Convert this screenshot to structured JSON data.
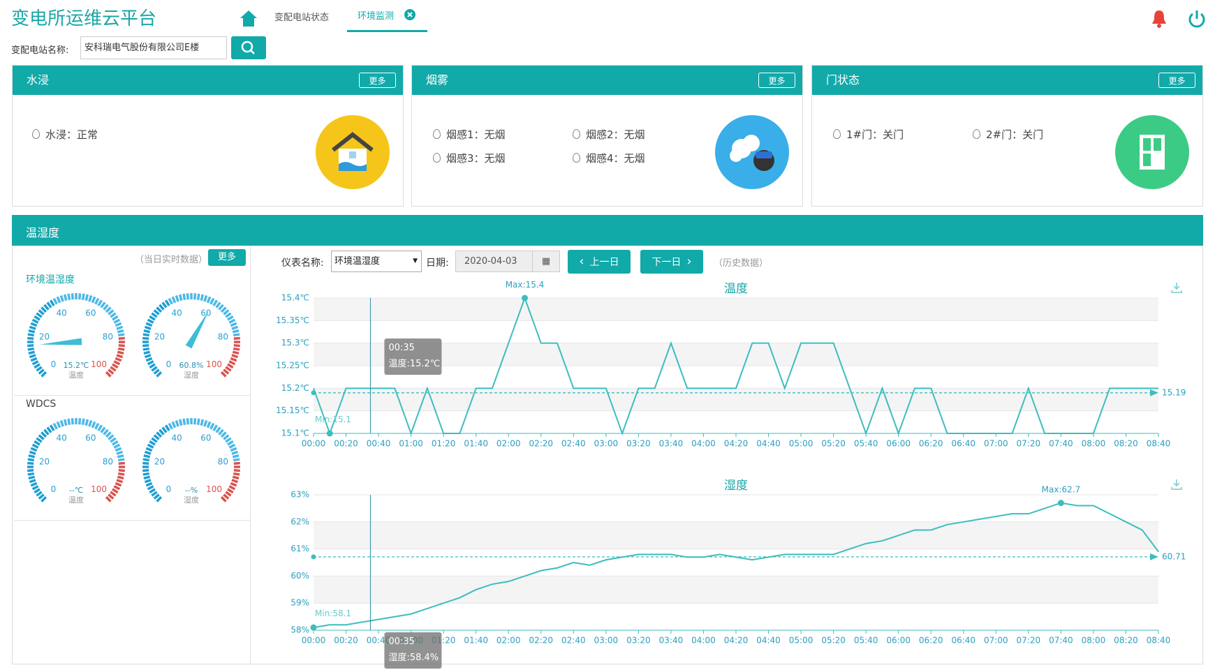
{
  "header": {
    "title": "变电所运维云平台",
    "tabs": [
      "变配电站状态",
      "环境监测"
    ]
  },
  "search": {
    "label": "变配电站名称:",
    "value": "安科瑞电气股份有限公司E楼"
  },
  "panels": [
    {
      "title": "水浸",
      "more": "更多",
      "items": [
        "水浸：正常"
      ]
    },
    {
      "title": "烟雾",
      "more": "更多",
      "items": [
        "烟感1：无烟",
        "烟感2：无烟",
        "烟感3：无烟",
        "烟感4：无烟"
      ]
    },
    {
      "title": "门状态",
      "more": "更多",
      "items": [
        "1#门：关门",
        "2#门：关门"
      ]
    }
  ],
  "env": {
    "title": "温湿度",
    "realtime_note": "（当日实时数据）",
    "more": "更多",
    "gauge_ticks": [
      0,
      20,
      40,
      60,
      80,
      100
    ],
    "groups": [
      {
        "name": "环境温湿度",
        "gauges": [
          {
            "value": 15.2,
            "value_label": "15.2℃",
            "label": "温度"
          },
          {
            "value": 60.8,
            "value_label": "60.8%",
            "label": "湿度"
          }
        ]
      },
      {
        "name": "WDCS",
        "gauges": [
          {
            "value": null,
            "value_label": "--℃",
            "label": "温度"
          },
          {
            "value": null,
            "value_label": "--%",
            "label": "湿度"
          }
        ]
      }
    ],
    "toolbar": {
      "meter_label": "仪表名称:",
      "meter": "环境温湿度",
      "date_label": "日期:",
      "date": "2020-04-03",
      "prev": "上一日",
      "next": "下一日",
      "note": "（历史数据）"
    }
  },
  "chart_data": [
    {
      "type": "line",
      "title": "温度",
      "color": "#3dbdbd",
      "categories": [
        "00:00",
        null,
        "00:20",
        null,
        "00:40",
        null,
        "01:00",
        null,
        "01:20",
        null,
        "01:40",
        null,
        "02:00",
        null,
        "02:20",
        null,
        "02:40",
        null,
        "03:00",
        null,
        "03:20",
        null,
        "03:40",
        null,
        "04:00",
        null,
        "04:20",
        null,
        "04:40",
        null,
        "05:00",
        null,
        "05:20",
        null,
        "05:40",
        null,
        "06:00",
        null,
        "06:20",
        null,
        "06:40",
        null,
        "07:00",
        null,
        "07:20",
        null,
        "07:40",
        null,
        "08:00",
        null,
        "08:20",
        null,
        "08:40"
      ],
      "values": [
        15.2,
        15.1,
        15.2,
        15.2,
        15.2,
        15.2,
        15.1,
        15.2,
        15.1,
        15.1,
        15.2,
        15.2,
        15.3,
        15.4,
        15.3,
        15.3,
        15.2,
        15.2,
        15.2,
        15.1,
        15.2,
        15.2,
        15.3,
        15.2,
        15.2,
        15.2,
        15.2,
        15.3,
        15.3,
        15.2,
        15.3,
        15.3,
        15.3,
        15.2,
        15.1,
        15.2,
        15.1,
        15.2,
        15.2,
        15.1,
        15.1,
        15.1,
        15.1,
        15.1,
        15.2,
        15.1,
        15.1,
        15.1,
        15.1,
        15.2,
        15.2,
        15.2,
        15.2
      ],
      "ylim": [
        15.1,
        15.4
      ],
      "yticks": [
        {
          "value": 15.1,
          "label": "15.1℃"
        },
        {
          "value": 15.15,
          "label": "15.15℃"
        },
        {
          "value": 15.2,
          "label": "15.2℃"
        },
        {
          "value": 15.25,
          "label": "15.25℃"
        },
        {
          "value": 15.3,
          "label": "15.3℃"
        },
        {
          "value": 15.35,
          "label": "15.35℃"
        },
        {
          "value": 15.4,
          "label": "15.4℃"
        }
      ],
      "max_label": "Max:15.4",
      "min_label": "Min:15.1",
      "mean": 15.19,
      "tooltip": {
        "time": "00:35",
        "text": "温度:15.2℃"
      }
    },
    {
      "type": "line",
      "title": "湿度",
      "color": "#3dbdbd",
      "categories": [
        "00:00",
        null,
        "00:20",
        null,
        "00:40",
        null,
        "01:00",
        null,
        "01:20",
        null,
        "01:40",
        null,
        "02:00",
        null,
        "02:20",
        null,
        "02:40",
        null,
        "03:00",
        null,
        "03:20",
        null,
        "03:40",
        null,
        "04:00",
        null,
        "04:20",
        null,
        "04:40",
        null,
        "05:00",
        null,
        "05:20",
        null,
        "05:40",
        null,
        "06:00",
        null,
        "06:20",
        null,
        "06:40",
        null,
        "07:00",
        null,
        "07:20",
        null,
        "07:40",
        null,
        "08:00",
        null,
        "08:20",
        null,
        "08:40"
      ],
      "values": [
        58.1,
        58.2,
        58.2,
        58.3,
        58.4,
        58.5,
        58.6,
        58.8,
        59.0,
        59.2,
        59.5,
        59.7,
        59.8,
        60.0,
        60.2,
        60.3,
        60.5,
        60.4,
        60.6,
        60.7,
        60.8,
        60.8,
        60.8,
        60.7,
        60.7,
        60.8,
        60.7,
        60.6,
        60.7,
        60.8,
        60.8,
        60.8,
        60.8,
        61.0,
        61.2,
        61.3,
        61.5,
        61.7,
        61.7,
        61.9,
        62.0,
        62.1,
        62.2,
        62.3,
        62.3,
        62.5,
        62.7,
        62.6,
        62.6,
        62.3,
        62.0,
        61.7,
        60.9
      ],
      "ylim": [
        58,
        63
      ],
      "yticks": [
        {
          "value": 58,
          "label": "58%"
        },
        {
          "value": 59,
          "label": "59%"
        },
        {
          "value": 60,
          "label": "60%"
        },
        {
          "value": 61,
          "label": "61%"
        },
        {
          "value": 62,
          "label": "62%"
        },
        {
          "value": 63,
          "label": "63%"
        }
      ],
      "max_label": "Max:62.7",
      "min_label": "Min:58.1",
      "mean": 60.71,
      "tooltip": {
        "time": "00:35",
        "text": "湿度:58.4%"
      }
    }
  ]
}
